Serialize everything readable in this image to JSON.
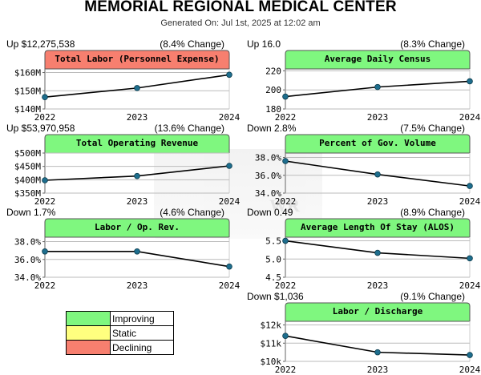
{
  "header": {
    "title": "MEMORIAL REGIONAL MEDICAL CENTER",
    "subtitle": "Generated On: Jul 1st, 2025 at 12:02 am"
  },
  "watermark": {
    "text": "WR"
  },
  "colors": {
    "improving": "#7ff77f",
    "static": "#ffff7f",
    "declining": "#f77f6f",
    "line": "#000000",
    "marker": "#1e6e8e"
  },
  "legend": [
    {
      "label": "Improving",
      "color": "#7ff77f"
    },
    {
      "label": "Static",
      "color": "#ffff7f"
    },
    {
      "label": "Declining",
      "color": "#f77f6f"
    }
  ],
  "chart_data": [
    {
      "type": "line",
      "title": "Total Labor (Personnel Expense)",
      "status": "declining",
      "stat_left": "Up $12,275,538",
      "stat_right": "(8.4% Change)",
      "x": [
        "2022",
        "2023",
        "2024"
      ],
      "values": [
        146.5,
        151.5,
        158.8
      ],
      "ylim": [
        140,
        162
      ],
      "yticks": [
        140,
        150,
        160
      ],
      "ytick_labels": [
        "$140M",
        "$150M",
        "$160M"
      ]
    },
    {
      "type": "line",
      "title": "Average Daily Census",
      "status": "improving",
      "stat_left": "Up 16.0",
      "stat_right": "(8.3% Change)",
      "x": [
        "2022",
        "2023",
        "2024"
      ],
      "values": [
        193,
        203,
        209
      ],
      "ylim": [
        180,
        222
      ],
      "yticks": [
        180,
        200,
        220
      ],
      "ytick_labels": [
        "180",
        "200",
        "220"
      ]
    },
    {
      "type": "line",
      "title": "Total Operating Revenue",
      "status": "improving",
      "stat_left": "Up $53,970,958",
      "stat_right": "(13.6% Change)",
      "x": [
        "2022",
        "2023",
        "2024"
      ],
      "values": [
        398,
        414,
        452
      ],
      "ylim": [
        350,
        500
      ],
      "yticks": [
        350,
        400,
        450,
        500
      ],
      "ytick_labels": [
        "$350M",
        "$400M",
        "$450M",
        "$500M"
      ]
    },
    {
      "type": "line",
      "title": "Percent of Gov. Volume",
      "status": "improving",
      "stat_left": "Down 2.8%",
      "stat_right": "(7.5% Change)",
      "x": [
        "2022",
        "2023",
        "2024"
      ],
      "values": [
        37.6,
        36.1,
        34.8
      ],
      "ylim": [
        34,
        38.5
      ],
      "yticks": [
        34,
        36,
        38
      ],
      "ytick_labels": [
        "34.0%",
        "36.0%",
        "38.0%"
      ]
    },
    {
      "type": "line",
      "title": "Labor / Op. Rev.",
      "status": "improving",
      "stat_left": "Down 1.7%",
      "stat_right": "(4.6% Change)",
      "x": [
        "2022",
        "2023",
        "2024"
      ],
      "values": [
        36.9,
        36.9,
        35.2
      ],
      "ylim": [
        34,
        38.5
      ],
      "yticks": [
        34,
        36,
        38
      ],
      "ytick_labels": [
        "34.0%",
        "36.0%",
        "38.0%"
      ]
    },
    {
      "type": "line",
      "title": "Average Length Of Stay (ALOS)",
      "status": "improving",
      "stat_left": "Down 0.49",
      "stat_right": "(8.9% Change)",
      "x": [
        "2022",
        "2023",
        "2024"
      ],
      "values": [
        5.5,
        5.17,
        5.02
      ],
      "ylim": [
        4.5,
        5.6
      ],
      "yticks": [
        4.5,
        5.0,
        5.5
      ],
      "ytick_labels": [
        "4.5",
        "5.0",
        "5.5"
      ]
    },
    {
      "type": "line",
      "title": "Labor / Discharge",
      "status": "improving",
      "stat_left": "Down $1,036",
      "stat_right": "(9.1% Change)",
      "x": [
        "2022",
        "2023",
        "2024"
      ],
      "values": [
        11.4,
        10.5,
        10.35
      ],
      "ylim": [
        10,
        12.2
      ],
      "yticks": [
        10,
        11,
        12
      ],
      "ytick_labels": [
        "$10k",
        "$11k",
        "$12k"
      ]
    }
  ]
}
